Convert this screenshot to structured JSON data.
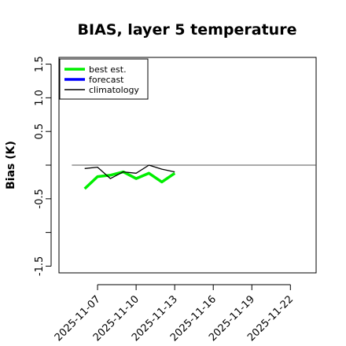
{
  "chart_data": {
    "type": "line",
    "title": "BIAS, layer 5 temperature",
    "xlabel": "",
    "ylabel": "Bias (K)",
    "ylim": [
      -1.6,
      1.6
    ],
    "xlim": [
      "2025-11-04",
      "2025-11-24"
    ],
    "yticks": [
      -1.5,
      -0.5,
      0.5,
      1.0,
      1.5
    ],
    "xticks": [
      "2025-11-07",
      "2025-11-10",
      "2025-11-13",
      "2025-11-16",
      "2025-11-19",
      "2025-11-22"
    ],
    "highlighted_xtick": "2025-11-13",
    "highlight_color": "#2e8b2e",
    "reference_line": {
      "y": 0,
      "color": "#555555"
    },
    "grid": false,
    "legend_position": "top-left",
    "series": [
      {
        "name": "best est.",
        "color": "#00ee00",
        "x": [
          "2025-11-06",
          "2025-11-07",
          "2025-11-08",
          "2025-11-09",
          "2025-11-10",
          "2025-11-11",
          "2025-11-12",
          "2025-11-13"
        ],
        "y": [
          -0.35,
          -0.17,
          -0.15,
          -0.1,
          -0.2,
          -0.12,
          -0.25,
          -0.12
        ]
      },
      {
        "name": "forecast",
        "color": "#0000ff",
        "x": [],
        "y": []
      },
      {
        "name": "climatology",
        "color": "#000000",
        "x": [
          "2025-11-06",
          "2025-11-07",
          "2025-11-08",
          "2025-11-09",
          "2025-11-10",
          "2025-11-11",
          "2025-11-12",
          "2025-11-13"
        ],
        "y": [
          -0.05,
          -0.03,
          -0.2,
          -0.1,
          -0.12,
          0.0,
          -0.06,
          -0.1
        ]
      }
    ]
  }
}
